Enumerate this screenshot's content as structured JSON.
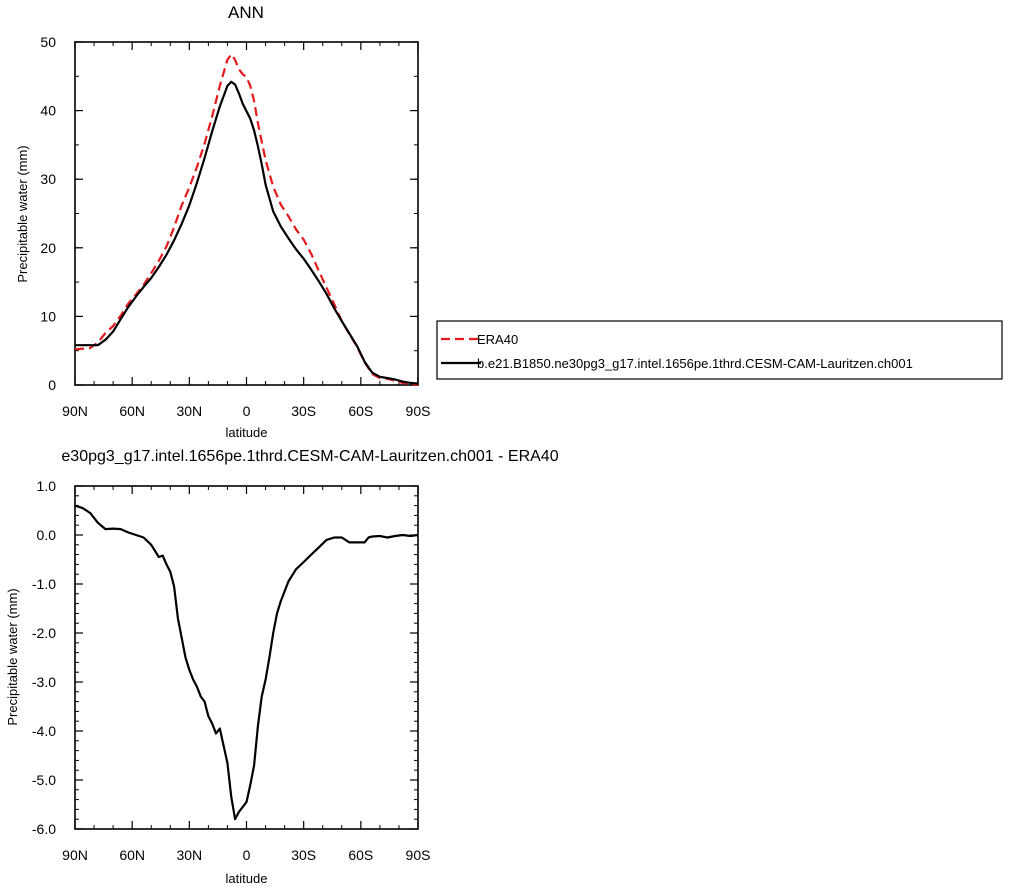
{
  "chart_data": [
    {
      "type": "line",
      "title": "ANN",
      "xlabel": "latitude",
      "ylabel": "Precipitable water (mm)",
      "xlim": [
        90,
        -90
      ],
      "ylim": [
        0,
        50
      ],
      "x_ticks": [
        90,
        60,
        30,
        0,
        -30,
        -60,
        -90
      ],
      "x_tick_labels": [
        "90N",
        "60N",
        "30N",
        "0",
        "30S",
        "60S",
        "90S"
      ],
      "y_ticks": [
        0,
        10,
        20,
        30,
        40,
        50
      ],
      "y_tick_labels": [
        "0",
        "10",
        "20",
        "30",
        "40",
        "50"
      ],
      "legend": {
        "position": "right",
        "entries": [
          "ERA40",
          "b.e21.B1850.ne30pg3_g17.intel.1656pe.1thrd.CESM-CAM-Lauritzen.ch001"
        ]
      },
      "series": [
        {
          "name": "ERA40",
          "color": "#e41a1c",
          "dash": "dashed",
          "x": [
            90,
            85,
            82,
            78,
            74,
            70,
            66,
            62,
            58,
            54,
            50,
            46,
            42,
            38,
            34,
            30,
            26,
            22,
            18,
            14,
            10,
            8,
            6,
            4,
            2,
            0,
            -2,
            -4,
            -6,
            -8,
            -10,
            -14,
            -18,
            -22,
            -26,
            -30,
            -34,
            -38,
            -42,
            -46,
            -50,
            -54,
            -58,
            -62,
            -66,
            -70,
            -74,
            -78,
            -82,
            -86,
            -90
          ],
          "y": [
            5.2,
            5.3,
            5.4,
            6.2,
            7.6,
            8.6,
            10.1,
            11.9,
            13.2,
            14.6,
            16.3,
            18.1,
            20.2,
            23.0,
            26.2,
            28.8,
            31.8,
            35.2,
            39.2,
            43.6,
            47.4,
            48.2,
            47.4,
            46.0,
            45.3,
            44.9,
            43.6,
            41.4,
            38.2,
            35.5,
            32.8,
            28.9,
            26.3,
            24.6,
            22.7,
            21.2,
            19.1,
            16.6,
            14.2,
            11.8,
            9.3,
            7.4,
            5.6,
            3.3,
            1.6,
            1.0,
            0.9,
            0.6,
            0.3,
            0.1,
            0.0
          ]
        },
        {
          "name": "b.e21.B1850.ne30pg3_g17.intel.1656pe.1thrd.CESM-CAM-Lauritzen.ch001",
          "color": "#000000",
          "dash": "solid",
          "x": [
            90,
            85,
            82,
            78,
            74,
            70,
            66,
            62,
            58,
            54,
            50,
            46,
            42,
            38,
            34,
            30,
            26,
            22,
            18,
            14,
            10,
            8,
            6,
            4,
            2,
            0,
            -2,
            -4,
            -6,
            -8,
            -10,
            -14,
            -18,
            -22,
            -26,
            -30,
            -34,
            -38,
            -42,
            -46,
            -50,
            -54,
            -58,
            -62,
            -66,
            -70,
            -74,
            -78,
            -82,
            -86,
            -90
          ],
          "y": [
            5.8,
            5.8,
            5.8,
            5.8,
            6.6,
            7.8,
            9.6,
            11.4,
            12.9,
            14.3,
            15.6,
            17.2,
            19.0,
            21.1,
            23.5,
            26.2,
            29.5,
            33.1,
            37.0,
            40.6,
            43.6,
            44.2,
            43.8,
            42.5,
            41.0,
            39.9,
            38.8,
            37.1,
            34.8,
            32.2,
            29.2,
            25.3,
            23.1,
            21.4,
            19.8,
            18.4,
            16.8,
            15.1,
            13.3,
            11.2,
            9.3,
            7.5,
            5.7,
            3.4,
            1.8,
            1.2,
            1.0,
            0.8,
            0.5,
            0.3,
            0.2
          ]
        }
      ]
    },
    {
      "type": "line",
      "title": "e30pg3_g17.intel.1656pe.1thrd.CESM-CAM-Lauritzen.ch001 - ERA40",
      "xlabel": "latitude",
      "ylabel": "Precipitable water (mm)",
      "xlim": [
        90,
        -90
      ],
      "ylim": [
        -6,
        1
      ],
      "x_ticks": [
        90,
        60,
        30,
        0,
        -30,
        -60,
        -90
      ],
      "x_tick_labels": [
        "90N",
        "60N",
        "30N",
        "0",
        "30S",
        "60S",
        "90S"
      ],
      "y_ticks": [
        1,
        0,
        -1,
        -2,
        -3,
        -4,
        -5,
        -6
      ],
      "y_tick_labels": [
        "1.0",
        "0.0",
        "-1.0",
        "-2.0",
        "-3.0",
        "-4.0",
        "-5.0",
        "-6.0"
      ],
      "series": [
        {
          "color": "#000000",
          "dash": "solid",
          "x": [
            90,
            86,
            82,
            78,
            74,
            70,
            66,
            62,
            58,
            54,
            50,
            46,
            44,
            42,
            40,
            38,
            36,
            34,
            32,
            30,
            28,
            26,
            24,
            22,
            20,
            18,
            16,
            14,
            12,
            10,
            8,
            6,
            4,
            2,
            0,
            -2,
            -4,
            -6,
            -8,
            -10,
            -12,
            -14,
            -16,
            -18,
            -20,
            -22,
            -26,
            -30,
            -34,
            -38,
            -42,
            -46,
            -50,
            -54,
            -58,
            -62,
            -64,
            -66,
            -70,
            -74,
            -78,
            -82,
            -86,
            -90
          ],
          "y": [
            0.6,
            0.55,
            0.45,
            0.25,
            0.12,
            0.13,
            0.12,
            0.05,
            0.0,
            -0.05,
            -0.2,
            -0.45,
            -0.42,
            -0.6,
            -0.75,
            -1.05,
            -1.7,
            -2.1,
            -2.5,
            -2.75,
            -2.95,
            -3.1,
            -3.3,
            -3.4,
            -3.7,
            -3.85,
            -4.05,
            -3.95,
            -4.3,
            -4.65,
            -5.35,
            -5.8,
            -5.65,
            -5.55,
            -5.45,
            -5.1,
            -4.7,
            -3.9,
            -3.3,
            -2.95,
            -2.5,
            -2.0,
            -1.6,
            -1.35,
            -1.15,
            -0.95,
            -0.7,
            -0.55,
            -0.4,
            -0.25,
            -0.1,
            -0.05,
            -0.05,
            -0.15,
            -0.15,
            -0.15,
            -0.05,
            -0.03,
            -0.02,
            -0.05,
            -0.02,
            0.0,
            -0.02,
            0.0
          ]
        }
      ]
    }
  ]
}
